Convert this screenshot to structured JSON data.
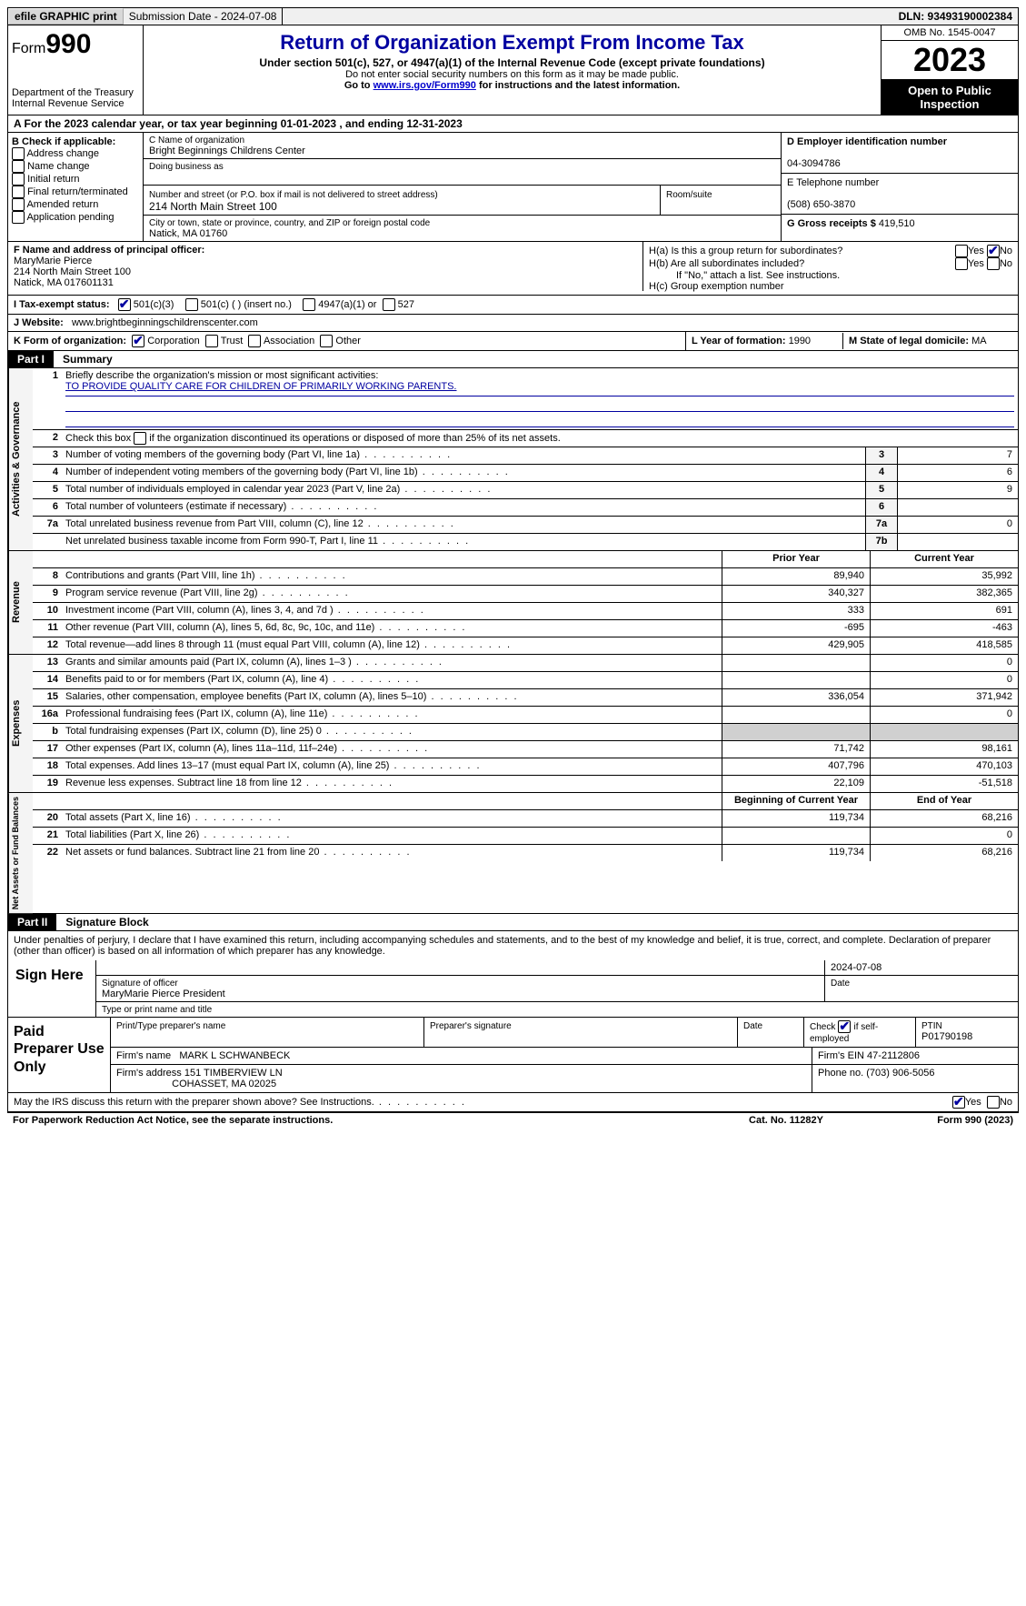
{
  "topbar": {
    "efile": "efile GRAPHIC print",
    "submission": "Submission Date - 2024-07-08",
    "dln": "DLN: 93493190002384"
  },
  "header": {
    "form_label": "Form",
    "form_num": "990",
    "dept": "Department of the Treasury\nInternal Revenue Service",
    "title": "Return of Organization Exempt From Income Tax",
    "subtitle": "Under section 501(c), 527, or 4947(a)(1) of the Internal Revenue Code (except private foundations)",
    "note1": "Do not enter social security numbers on this form as it may be made public.",
    "note2_pre": "Go to ",
    "note2_link": "www.irs.gov/Form990",
    "note2_post": " for instructions and the latest information.",
    "omb": "OMB No. 1545-0047",
    "year": "2023",
    "open": "Open to Public Inspection"
  },
  "line_a": "A For the 2023 calendar year, or tax year beginning 01-01-2023     , and ending 12-31-2023",
  "box_b": {
    "title": "B Check if applicable:",
    "opts": [
      "Address change",
      "Name change",
      "Initial return",
      "Final return/terminated",
      "Amended return",
      "Application pending"
    ]
  },
  "box_c": {
    "name_lbl": "C Name of organization",
    "name": "Bright Beginnings Childrens Center",
    "dba_lbl": "Doing business as",
    "dba": "",
    "street_lbl": "Number and street (or P.O. box if mail is not delivered to street address)",
    "street": "214 North Main Street 100",
    "room_lbl": "Room/suite",
    "city_lbl": "City or town, state or province, country, and ZIP or foreign postal code",
    "city": "Natick, MA   01760"
  },
  "box_d": {
    "ein_lbl": "D Employer identification number",
    "ein": "04-3094786",
    "phone_lbl": "E Telephone number",
    "phone": "(508) 650-3870",
    "gross_lbl": "G Gross receipts $",
    "gross": "419,510"
  },
  "box_f": {
    "lbl": "F  Name and address of principal officer:",
    "name": "MaryMarie Pierce",
    "addr1": "214 North Main Street 100",
    "addr2": "Natick, MA   017601131"
  },
  "box_h": {
    "ha": "H(a)  Is this a group return for subordinates?",
    "hb": "H(b)  Are all subordinates included?",
    "hb_note": "If \"No,\" attach a list. See instructions.",
    "hc": "H(c)  Group exemption number"
  },
  "line_i": {
    "lbl": "I    Tax-exempt status:",
    "o1": "501(c)(3)",
    "o2": "501(c) (  ) (insert no.)",
    "o3": "4947(a)(1) or",
    "o4": "527"
  },
  "line_j": {
    "lbl": "J    Website:",
    "val": "www.brightbeginningschildrenscenter.com"
  },
  "line_k": {
    "lbl": "K Form of organization:",
    "o1": "Corporation",
    "o2": "Trust",
    "o3": "Association",
    "o4": "Other"
  },
  "line_l": {
    "lbl": "L Year of formation:",
    "val": "1990"
  },
  "line_m": {
    "lbl": "M State of legal domicile:",
    "val": "MA"
  },
  "part1": {
    "label": "Part I",
    "title": "Summary"
  },
  "mission": {
    "lbl": "Briefly describe the organization's mission or most significant activities:",
    "text": "TO PROVIDE QUALITY CARE FOR CHILDREN OF PRIMARILY WORKING PARENTS."
  },
  "line2": "Check this box      if the organization discontinued its operations or disposed of more than 25% of its net assets.",
  "gov_rows": [
    {
      "n": "3",
      "d": "Number of voting members of the governing body (Part VI, line 1a)",
      "box": "3",
      "v": "7"
    },
    {
      "n": "4",
      "d": "Number of independent voting members of the governing body (Part VI, line 1b)",
      "box": "4",
      "v": "6"
    },
    {
      "n": "5",
      "d": "Total number of individuals employed in calendar year 2023 (Part V, line 2a)",
      "box": "5",
      "v": "9"
    },
    {
      "n": "6",
      "d": "Total number of volunteers (estimate if necessary)",
      "box": "6",
      "v": ""
    },
    {
      "n": "7a",
      "d": "Total unrelated business revenue from Part VIII, column (C), line 12",
      "box": "7a",
      "v": "0"
    },
    {
      "n": "",
      "d": "Net unrelated business taxable income from Form 990-T, Part I, line 11",
      "box": "7b",
      "v": ""
    }
  ],
  "col_hdrs": {
    "prior": "Prior Year",
    "current": "Current Year",
    "begin": "Beginning of Current Year",
    "end": "End of Year"
  },
  "rev_rows": [
    {
      "n": "8",
      "d": "Contributions and grants (Part VIII, line 1h)",
      "p": "89,940",
      "c": "35,992"
    },
    {
      "n": "9",
      "d": "Program service revenue (Part VIII, line 2g)",
      "p": "340,327",
      "c": "382,365"
    },
    {
      "n": "10",
      "d": "Investment income (Part VIII, column (A), lines 3, 4, and 7d )",
      "p": "333",
      "c": "691"
    },
    {
      "n": "11",
      "d": "Other revenue (Part VIII, column (A), lines 5, 6d, 8c, 9c, 10c, and 11e)",
      "p": "-695",
      "c": "-463"
    },
    {
      "n": "12",
      "d": "Total revenue—add lines 8 through 11 (must equal Part VIII, column (A), line 12)",
      "p": "429,905",
      "c": "418,585"
    }
  ],
  "exp_rows": [
    {
      "n": "13",
      "d": "Grants and similar amounts paid (Part IX, column (A), lines 1–3 )",
      "p": "",
      "c": "0"
    },
    {
      "n": "14",
      "d": "Benefits paid to or for members (Part IX, column (A), line 4)",
      "p": "",
      "c": "0"
    },
    {
      "n": "15",
      "d": "Salaries, other compensation, employee benefits (Part IX, column (A), lines 5–10)",
      "p": "336,054",
      "c": "371,942"
    },
    {
      "n": "16a",
      "d": "Professional fundraising fees (Part IX, column (A), line 11e)",
      "p": "",
      "c": "0"
    },
    {
      "n": "b",
      "d": "Total fundraising expenses (Part IX, column (D), line 25) 0",
      "p": "SHADE",
      "c": "SHADE"
    },
    {
      "n": "17",
      "d": "Other expenses (Part IX, column (A), lines 11a–11d, 11f–24e)",
      "p": "71,742",
      "c": "98,161"
    },
    {
      "n": "18",
      "d": "Total expenses. Add lines 13–17 (must equal Part IX, column (A), line 25)",
      "p": "407,796",
      "c": "470,103"
    },
    {
      "n": "19",
      "d": "Revenue less expenses. Subtract line 18 from line 12",
      "p": "22,109",
      "c": "-51,518"
    }
  ],
  "net_rows": [
    {
      "n": "20",
      "d": "Total assets (Part X, line 16)",
      "p": "119,734",
      "c": "68,216"
    },
    {
      "n": "21",
      "d": "Total liabilities (Part X, line 26)",
      "p": "",
      "c": "0"
    },
    {
      "n": "22",
      "d": "Net assets or fund balances. Subtract line 21 from line 20",
      "p": "119,734",
      "c": "68,216"
    }
  ],
  "side_labels": {
    "gov": "Activities & Governance",
    "rev": "Revenue",
    "exp": "Expenses",
    "net": "Net Assets or Fund Balances"
  },
  "part2": {
    "label": "Part II",
    "title": "Signature Block"
  },
  "perjury": "Under penalties of perjury, I declare that I have examined this return, including accompanying schedules and statements, and to the best of my knowledge and belief, it is true, correct, and complete. Declaration of preparer (other than officer) is based on all information of which preparer has any knowledge.",
  "sign": {
    "here": "Sign Here",
    "sig_lbl": "Signature of officer",
    "date_lbl": "Date",
    "date": "2024-07-08",
    "name": "MaryMarie Pierce  President",
    "type_lbl": "Type or print name and title"
  },
  "prep": {
    "here": "Paid Preparer Use Only",
    "c1": "Print/Type preparer's name",
    "c2": "Preparer's signature",
    "c3": "Date",
    "c4_pre": "Check",
    "c4_post": "if self-employed",
    "c5": "PTIN",
    "ptin": "P01790198",
    "firm_lbl": "Firm's name",
    "firm": "MARK L SCHWANBECK",
    "ein_lbl": "Firm's EIN",
    "ein": "47-2112806",
    "addr_lbl": "Firm's address",
    "addr1": "151 TIMBERVIEW LN",
    "addr2": "COHASSET, MA   02025",
    "phone_lbl": "Phone no.",
    "phone": "(703) 906-5056"
  },
  "irs_discuss": "May the IRS discuss this return with the preparer shown above? See Instructions.",
  "footer": {
    "left": "For Paperwork Reduction Act Notice, see the separate instructions.",
    "mid": "Cat. No. 11282Y",
    "right_pre": "Form ",
    "right_b": "990",
    "right_post": " (2023)"
  },
  "yn": {
    "yes": "Yes",
    "no": "No"
  }
}
